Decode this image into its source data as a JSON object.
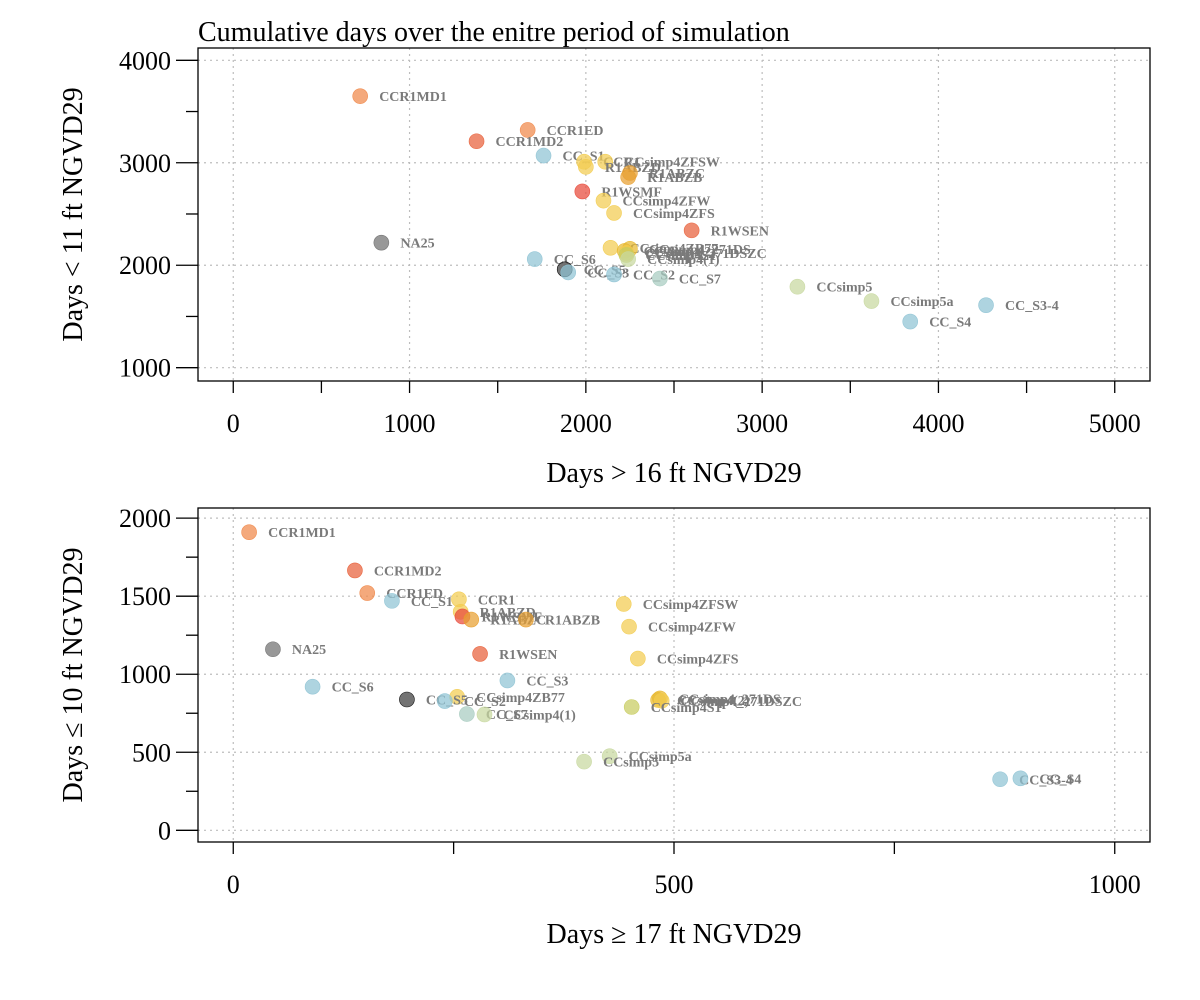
{
  "chart_data": [
    {
      "type": "scatter",
      "title": "Cumulative days over the enitre period of simulation",
      "xlabel": "Days > 16 ft NGVD29",
      "ylabel": "Days < 11 ft NGVD29",
      "xlim": [
        -200,
        5200
      ],
      "ylim": [
        870,
        4120
      ],
      "xticks": [
        0,
        1000,
        2000,
        3000,
        4000,
        5000
      ],
      "xtick_labels": [
        "0",
        "1000",
        "2000",
        "3000",
        "4000",
        "5000"
      ],
      "yticks": [
        1000,
        2000,
        3000,
        4000
      ],
      "ytick_labels": [
        "1000",
        "2000",
        "3000",
        "4000"
      ],
      "x_minor_ticks": [
        500,
        1500,
        2500,
        3500,
        4500
      ],
      "y_minor_ticks": [
        1500,
        2500,
        3500
      ],
      "grid": true,
      "points": [
        {
          "label": "CCR1MD1",
          "x": 720,
          "y": 3650,
          "color": "#F0884A"
        },
        {
          "label": "CCR1ED",
          "x": 1670,
          "y": 3320,
          "color": "#F0884A"
        },
        {
          "label": "CCR1MD2",
          "x": 1380,
          "y": 3210,
          "color": "#E8603A"
        },
        {
          "label": "CC_S1",
          "x": 1760,
          "y": 3070,
          "color": "#8FC3D4"
        },
        {
          "label": "CCR1",
          "x": 1990,
          "y": 3010,
          "color": "#F2CC50"
        },
        {
          "label": "CCsimp4ZFSW",
          "x": 2110,
          "y": 3010,
          "color": "#F2CC50"
        },
        {
          "label": "R1ABZD",
          "x": 2000,
          "y": 2960,
          "color": "#F2CC50"
        },
        {
          "label": "R1ABZC",
          "x": 2250,
          "y": 2900,
          "color": "#E8A030"
        },
        {
          "label": "R1ABZB",
          "x": 2240,
          "y": 2860,
          "color": "#E8A030"
        },
        {
          "label": "R1WSMF",
          "x": 1980,
          "y": 2720,
          "color": "#E84A3A"
        },
        {
          "label": "CCsimp4ZFW",
          "x": 2100,
          "y": 2630,
          "color": "#F2CC50"
        },
        {
          "label": "CCsimp4ZFS",
          "x": 2160,
          "y": 2510,
          "color": "#F2CC50"
        },
        {
          "label": "R1WSEN",
          "x": 2600,
          "y": 2340,
          "color": "#E8603A"
        },
        {
          "label": "NA25",
          "x": 840,
          "y": 2220,
          "color": "#707070"
        },
        {
          "label": "CCsimp4ZB77",
          "x": 2140,
          "y": 2170,
          "color": "#F2CC50"
        },
        {
          "label": "CCsimp4_271DS",
          "x": 2250,
          "y": 2160,
          "color": "#E8B830"
        },
        {
          "label": "CCsimp4(2)",
          "x": 2220,
          "y": 2140,
          "color": "#E8B830"
        },
        {
          "label": "CCsimp4_271DSZC",
          "x": 2230,
          "y": 2120,
          "color": "#F2CC50"
        },
        {
          "label": "CCsimp4S1",
          "x": 2230,
          "y": 2100,
          "color": "#C8CC60"
        },
        {
          "label": "CCsimp4(1)",
          "x": 2240,
          "y": 2060,
          "color": "#C8D8A0"
        },
        {
          "label": "CC_S6",
          "x": 1710,
          "y": 2060,
          "color": "#8FC3D4"
        },
        {
          "label": "CC_S5",
          "x": 1880,
          "y": 1960,
          "color": "#444444"
        },
        {
          "label": "CC_S3",
          "x": 1900,
          "y": 1930,
          "color": "#8FC3D4"
        },
        {
          "label": "CC_S2",
          "x": 2160,
          "y": 1910,
          "color": "#8FC3D4"
        },
        {
          "label": "CC_S7",
          "x": 2420,
          "y": 1870,
          "color": "#A8CCC0"
        },
        {
          "label": "CCsimp5",
          "x": 3200,
          "y": 1790,
          "color": "#C8D8A0"
        },
        {
          "label": "CCsimp5a",
          "x": 3620,
          "y": 1650,
          "color": "#C8D8A0"
        },
        {
          "label": "CC_S3-4",
          "x": 4270,
          "y": 1610,
          "color": "#8FC3D4"
        },
        {
          "label": "CC_S4",
          "x": 3840,
          "y": 1450,
          "color": "#8FC3D4"
        }
      ]
    },
    {
      "type": "scatter",
      "xlabel": "Days ≥ 17 ft NGVD29",
      "ylabel": "Days ≤ 10 ft NGVD29",
      "xlim": [
        -40,
        1040
      ],
      "ylim": [
        -75,
        2065
      ],
      "xticks": [
        0,
        500,
        1000
      ],
      "xtick_labels": [
        "0",
        "500",
        "1000"
      ],
      "yticks": [
        0,
        500,
        1000,
        1500,
        2000
      ],
      "ytick_labels": [
        "0",
        "500",
        "1000",
        "1500",
        "2000"
      ],
      "x_minor_ticks": [
        250,
        750
      ],
      "y_minor_ticks": [
        250,
        750,
        1250,
        1750
      ],
      "grid": true,
      "points": [
        {
          "label": "CCR1MD1",
          "x": 18,
          "y": 1910,
          "color": "#F0884A"
        },
        {
          "label": "CCR1MD2",
          "x": 138,
          "y": 1665,
          "color": "#E8603A"
        },
        {
          "label": "CCR1ED",
          "x": 152,
          "y": 1520,
          "color": "#F0884A"
        },
        {
          "label": "CC_S1",
          "x": 180,
          "y": 1470,
          "color": "#8FC3D4"
        },
        {
          "label": "CCR1",
          "x": 256,
          "y": 1480,
          "color": "#F2CC50"
        },
        {
          "label": "R1ABZD",
          "x": 258,
          "y": 1400,
          "color": "#F2CC50"
        },
        {
          "label": "R1WSMF",
          "x": 260,
          "y": 1370,
          "color": "#E84A3A"
        },
        {
          "label": "R1ABZC",
          "x": 270,
          "y": 1350,
          "color": "#E8A030"
        },
        {
          "label": "R1ABZB",
          "x": 332,
          "y": 1350,
          "color": "#E8A030"
        },
        {
          "label": "CCsimp4ZFSW",
          "x": 443,
          "y": 1450,
          "color": "#F2CC50"
        },
        {
          "label": "CCsimp4ZFW",
          "x": 449,
          "y": 1305,
          "color": "#F2CC50"
        },
        {
          "label": "NA25",
          "x": 45,
          "y": 1160,
          "color": "#707070"
        },
        {
          "label": "R1WSEN",
          "x": 280,
          "y": 1130,
          "color": "#E8603A"
        },
        {
          "label": "CCsimp4ZFS",
          "x": 459,
          "y": 1100,
          "color": "#F2CC50"
        },
        {
          "label": "CC_S3",
          "x": 311,
          "y": 960,
          "color": "#8FC3D4"
        },
        {
          "label": "CC_S6",
          "x": 90,
          "y": 920,
          "color": "#8FC3D4"
        },
        {
          "label": "CCsimp4ZB77",
          "x": 254,
          "y": 855,
          "color": "#F2CC50"
        },
        {
          "label": "CC_S5",
          "x": 197,
          "y": 838,
          "color": "#444444"
        },
        {
          "label": "CC_S2",
          "x": 240,
          "y": 828,
          "color": "#8FC3D4"
        },
        {
          "label": "CCsimp4_271DS",
          "x": 484,
          "y": 845,
          "color": "#E8B830"
        },
        {
          "label": "CCsimp4(2)",
          "x": 482,
          "y": 835,
          "color": "#E8B830"
        },
        {
          "label": "CCsimp4_271DSZC",
          "x": 486,
          "y": 830,
          "color": "#F2CC50"
        },
        {
          "label": "CCsimp4S1",
          "x": 452,
          "y": 790,
          "color": "#C8CC60"
        },
        {
          "label": "CC_S7",
          "x": 265,
          "y": 745,
          "color": "#A8CCC0"
        },
        {
          "label": "CCsimp4(1)",
          "x": 285,
          "y": 742,
          "color": "#C8D8A0"
        },
        {
          "label": "CCsimp5a",
          "x": 427,
          "y": 475,
          "color": "#C8D8A0"
        },
        {
          "label": "CCsimp5",
          "x": 398,
          "y": 440,
          "color": "#C8D8A0"
        },
        {
          "label": "CC_S3-4",
          "x": 870,
          "y": 327,
          "color": "#8FC3D4"
        },
        {
          "label": "CC_S4",
          "x": 893,
          "y": 333,
          "color": "#8FC3D4"
        }
      ]
    }
  ]
}
